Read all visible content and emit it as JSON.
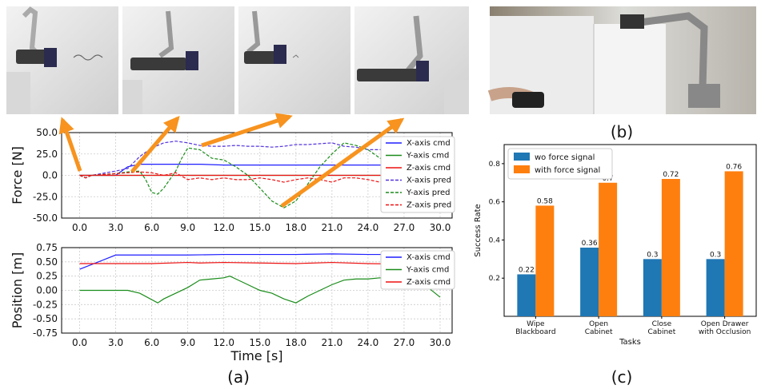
{
  "figure": {
    "labels": {
      "a": "(a)",
      "b": "(b)",
      "c": "(c)"
    },
    "photos": [
      {
        "name": "photo-wipe-1",
        "icon": "robot-arm-wiping-board"
      },
      {
        "name": "photo-wipe-2",
        "icon": "robot-arm-wiping-board"
      },
      {
        "name": "photo-wipe-3",
        "icon": "robot-arm-wiping-board"
      },
      {
        "name": "photo-wipe-4",
        "icon": "robot-arm-wiping-board"
      },
      {
        "name": "photo-teleop",
        "icon": "robot-arm-opening-cabinet"
      }
    ],
    "arrow_color": "#f7931e"
  },
  "chart_data": [
    {
      "type": "line",
      "ylabel": "Force [N]",
      "xlabel": "",
      "xlim": [
        -1.5,
        31
      ],
      "ylim": [
        -50,
        50
      ],
      "xticks": [
        "0.0",
        "3.0",
        "6.0",
        "9.0",
        "12.0",
        "15.0",
        "18.0",
        "21.0",
        "24.0",
        "27.0",
        "30.0"
      ],
      "yticks": [
        "50.0",
        "25.0",
        "0.0",
        "-25.0",
        "-50.0"
      ],
      "grid": true,
      "legend_position": "right",
      "series": [
        {
          "name": "X-axis cmd",
          "color": "#1f1fff",
          "style": "solid",
          "x": [
            0,
            0.2,
            3,
            3.5,
            4,
            5,
            6,
            8,
            10,
            12,
            15,
            18,
            21,
            24,
            27,
            30
          ],
          "y": [
            0,
            0,
            0,
            5,
            10,
            13,
            13,
            13,
            13,
            12,
            12,
            12,
            12,
            12,
            12,
            12
          ]
        },
        {
          "name": "Y-axis cmd",
          "color": "#1a8c1a",
          "style": "solid",
          "x": [
            0,
            30
          ],
          "y": [
            0,
            0
          ]
        },
        {
          "name": "Z-axis cmd",
          "color": "#ee1111",
          "style": "solid",
          "x": [
            0,
            30
          ],
          "y": [
            0,
            0
          ]
        },
        {
          "name": "X-axis pred",
          "color": "#5533dd",
          "style": "dashed",
          "x": [
            0,
            0.5,
            1,
            3,
            4,
            5,
            6,
            7,
            8,
            9,
            10,
            11,
            12,
            13,
            14,
            15,
            16,
            17,
            18,
            19,
            20,
            21,
            22,
            23,
            24,
            25,
            26,
            27,
            28,
            29,
            30
          ],
          "y": [
            0,
            -3,
            0,
            5,
            8,
            22,
            32,
            38,
            40,
            38,
            35,
            34,
            34,
            35,
            34,
            34,
            33,
            34,
            36,
            36,
            37,
            38,
            34,
            33,
            30,
            30,
            30,
            30,
            30,
            31,
            31
          ]
        },
        {
          "name": "Y-axis pred",
          "color": "#1a8c1a",
          "style": "dashed",
          "x": [
            0,
            0.5,
            1,
            3,
            4,
            5,
            5.5,
            6,
            6.5,
            7,
            7.5,
            8,
            8.5,
            9,
            10,
            11,
            12,
            13,
            14,
            15,
            16,
            17,
            18,
            19,
            20,
            21,
            22,
            23,
            24,
            25,
            26,
            27,
            28,
            29,
            30
          ],
          "y": [
            0,
            -3,
            0,
            2,
            4,
            5,
            -5,
            -20,
            -22,
            -15,
            -5,
            5,
            20,
            32,
            30,
            20,
            18,
            10,
            0,
            -15,
            -30,
            -38,
            -30,
            -10,
            10,
            25,
            38,
            35,
            30,
            20,
            15,
            10,
            5,
            -5,
            -38
          ]
        },
        {
          "name": "Z-axis pred",
          "color": "#ee1111",
          "style": "dashed",
          "x": [
            0,
            0.5,
            1,
            3,
            4,
            5,
            6,
            7,
            8,
            9,
            10,
            11,
            12,
            13,
            14,
            15,
            16,
            17,
            18,
            19,
            20,
            21,
            22,
            23,
            24,
            25,
            26,
            27,
            28,
            29,
            30
          ],
          "y": [
            0,
            -3,
            0,
            2,
            3,
            4,
            3,
            0,
            3,
            -5,
            -3,
            -5,
            -3,
            -5,
            -5,
            -3,
            -5,
            -8,
            -5,
            -3,
            -5,
            -8,
            -3,
            -3,
            -5,
            -8,
            -5,
            -3,
            -5,
            -3,
            -5
          ]
        }
      ]
    },
    {
      "type": "line",
      "ylabel": "Position [m]",
      "xlabel": "Time [s]",
      "xlim": [
        -1.5,
        31
      ],
      "ylim": [
        -0.75,
        0.75
      ],
      "xticks": [
        "0.0",
        "3.0",
        "6.0",
        "9.0",
        "12.0",
        "15.0",
        "18.0",
        "21.0",
        "24.0",
        "27.0",
        "30.0"
      ],
      "yticks": [
        "0.75",
        "0.50",
        "0.25",
        "0.00",
        "-0.25",
        "-0.50",
        "-0.75"
      ],
      "grid": true,
      "legend_position": "right",
      "series": [
        {
          "name": "X-axis cmd",
          "color": "#1f1fff",
          "style": "solid",
          "x": [
            0,
            3,
            6,
            9,
            12,
            15,
            18,
            21,
            24,
            27,
            30
          ],
          "y": [
            0.37,
            0.62,
            0.62,
            0.62,
            0.63,
            0.63,
            0.63,
            0.64,
            0.63,
            0.63,
            0.63
          ]
        },
        {
          "name": "Y-axis cmd",
          "color": "#1a8c1a",
          "style": "solid",
          "x": [
            0,
            3,
            4,
            5,
            6.5,
            7,
            8,
            9,
            10,
            11,
            12,
            12.5,
            13,
            14,
            15,
            16,
            17,
            18,
            19,
            20,
            21,
            22,
            23,
            24,
            25,
            26,
            27,
            28,
            29,
            30
          ],
          "y": [
            0,
            0,
            0,
            -0.05,
            -0.22,
            -0.15,
            -0.05,
            0.05,
            0.18,
            0.2,
            0.22,
            0.25,
            0.2,
            0.1,
            0,
            -0.05,
            -0.15,
            -0.22,
            -0.1,
            0,
            0.1,
            0.18,
            0.2,
            0.2,
            0.22,
            0.2,
            0.2,
            0.2,
            0.05,
            -0.12
          ]
        },
        {
          "name": "Z-axis cmd",
          "color": "#ee1111",
          "style": "solid",
          "x": [
            0,
            3,
            6,
            9,
            10,
            12,
            15,
            18,
            21,
            24,
            27,
            30
          ],
          "y": [
            0.47,
            0.47,
            0.47,
            0.49,
            0.48,
            0.49,
            0.48,
            0.47,
            0.49,
            0.47,
            0.46,
            0.46
          ]
        }
      ]
    },
    {
      "type": "bar",
      "title": "",
      "xlabel": "Tasks",
      "ylabel": "Success Rate",
      "ylim": [
        0,
        0.9
      ],
      "yticks": [
        "0.2",
        "0.4",
        "0.6",
        "0.8"
      ],
      "categories": [
        "Wipe\nBlackboard",
        "Open\nCabinet",
        "Close\nCabinet",
        "Open Drawer\nwith Occlusion"
      ],
      "legend_position": "top-left",
      "series": [
        {
          "name": "wo force signal",
          "color": "#1f77b4",
          "values": [
            0.22,
            0.36,
            0.3,
            0.3
          ],
          "labels": [
            "0.22",
            "0.36",
            "0.3",
            "0.3"
          ]
        },
        {
          "name": "with force signal",
          "color": "#ff7f0e",
          "values": [
            0.58,
            0.7,
            0.72,
            0.76
          ],
          "labels": [
            "0.58",
            "0.7",
            "0.72",
            "0.76"
          ]
        }
      ]
    }
  ]
}
